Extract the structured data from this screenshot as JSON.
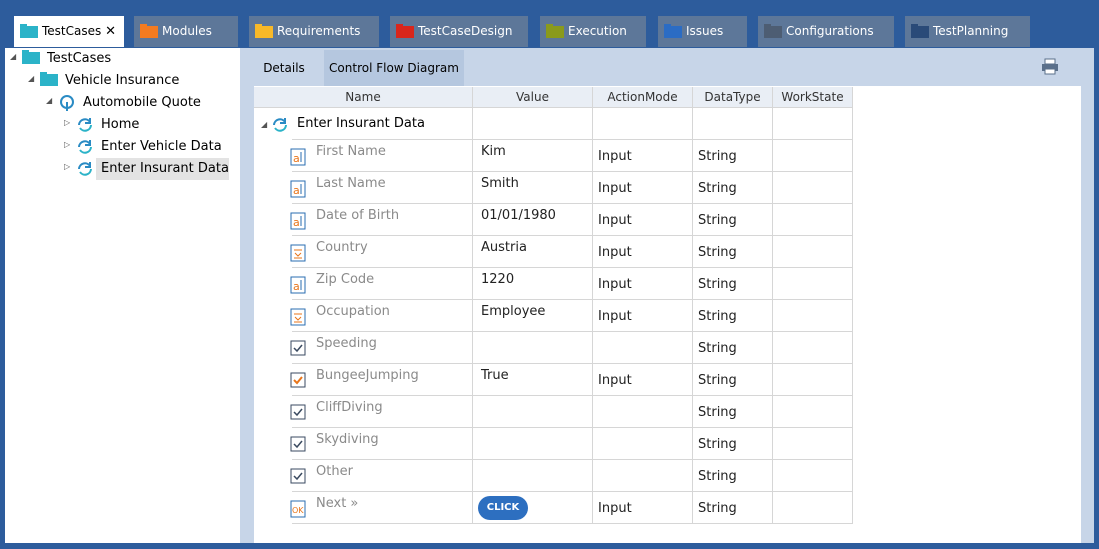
{
  "tabs": [
    {
      "label": "TestCases",
      "color": "#2bb3c8",
      "active": true
    },
    {
      "label": "Modules",
      "color": "#f47b20"
    },
    {
      "label": "Requirements",
      "color": "#f9b928"
    },
    {
      "label": "TestCaseDesign",
      "color": "#d9261c"
    },
    {
      "label": "Execution",
      "color": "#8a9a1c"
    },
    {
      "label": "Issues",
      "color": "#2b6cc4"
    },
    {
      "label": "Configurations",
      "color": "#4d5d73"
    },
    {
      "label": "TestPlanning",
      "color": "#2a4a78"
    }
  ],
  "tree": [
    {
      "label": "TestCases",
      "depth": 0,
      "icon": "folder"
    },
    {
      "label": "Vehicle Insurance",
      "depth": 1,
      "icon": "folder"
    },
    {
      "label": "Automobile Quote",
      "depth": 2,
      "icon": "case"
    },
    {
      "label": "Home",
      "depth": 3,
      "icon": "step"
    },
    {
      "label": "Enter Vehicle Data",
      "depth": 3,
      "icon": "step"
    },
    {
      "label": "Enter Insurant Data",
      "depth": 3,
      "icon": "step",
      "selected": true
    }
  ],
  "detail_tabs": [
    "Details",
    "Control Flow Diagram"
  ],
  "table": {
    "columns": [
      "Name",
      "Value",
      "ActionMode",
      "DataType",
      "WorkState"
    ],
    "group": "Enter Insurant Data",
    "rows": [
      {
        "name": "First Name",
        "value": "Kim",
        "action": "Input",
        "type": "String",
        "icon": "text"
      },
      {
        "name": "Last Name",
        "value": "Smith",
        "action": "Input",
        "type": "String",
        "icon": "text"
      },
      {
        "name": "Date of Birth",
        "value": "01/01/1980",
        "action": "Input",
        "type": "String",
        "icon": "text"
      },
      {
        "name": "Country",
        "value": "Austria",
        "action": "Input",
        "type": "String",
        "icon": "list"
      },
      {
        "name": "Zip Code",
        "value": "1220",
        "action": "Input",
        "type": "String",
        "icon": "text"
      },
      {
        "name": "Occupation",
        "value": "Employee",
        "action": "Input",
        "type": "String",
        "icon": "list"
      },
      {
        "name": "Speeding",
        "type": "String",
        "icon": "check"
      },
      {
        "name": "BungeeJumping",
        "value": "True",
        "action": "Input",
        "type": "String",
        "icon": "check-on"
      },
      {
        "name": "CliffDiving",
        "type": "String",
        "icon": "check"
      },
      {
        "name": "Skydiving",
        "type": "String",
        "icon": "check"
      },
      {
        "name": "Other",
        "type": "String",
        "icon": "check"
      },
      {
        "name": "Next »",
        "button": "CLICK",
        "action": "Input",
        "type": "String",
        "icon": "button"
      }
    ]
  }
}
